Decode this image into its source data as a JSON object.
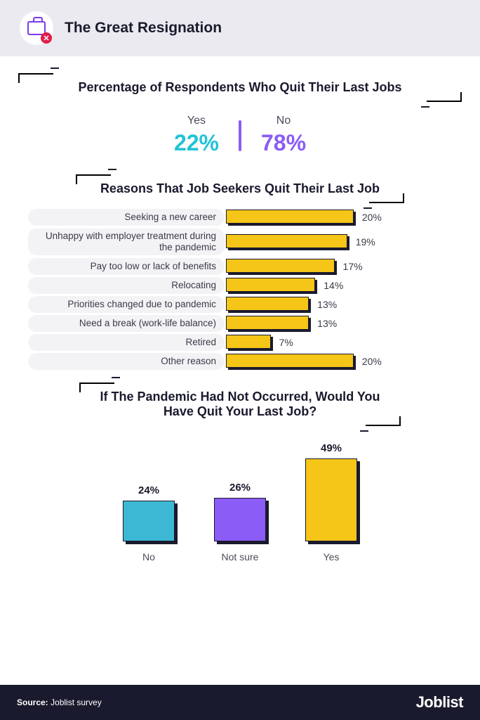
{
  "header": {
    "title": "The Great Resignation",
    "icon": "briefcase-x-icon"
  },
  "section1": {
    "title": "Percentage of Respondents Who Quit Their Last Jobs",
    "yes_label": "Yes",
    "yes_value": "22%",
    "yes_color": "#22c3d6",
    "no_label": "No",
    "no_value": "78%",
    "no_color": "#8b5cf6",
    "divider_color": "#8b5cf6"
  },
  "section2": {
    "title": "Reasons That Job Seekers Quit Their Last Job",
    "type": "bar-horizontal",
    "bar_color": "#f5c518",
    "border_color": "#1a1a2e",
    "label_bg": "#f3f3f6",
    "max_pct": 22,
    "rows": [
      {
        "label": "Seeking a new career",
        "value": 20,
        "display": "20%"
      },
      {
        "label": "Unhappy with employer treatment during the pandemic",
        "value": 19,
        "display": "19%",
        "two_line": true
      },
      {
        "label": "Pay too low or lack of benefits",
        "value": 17,
        "display": "17%"
      },
      {
        "label": "Relocating",
        "value": 14,
        "display": "14%"
      },
      {
        "label": "Priorities changed due to pandemic",
        "value": 13,
        "display": "13%"
      },
      {
        "label": "Need a break (work-life balance)",
        "value": 13,
        "display": "13%"
      },
      {
        "label": "Retired",
        "value": 7,
        "display": "7%"
      },
      {
        "label": "Other reason",
        "value": 20,
        "display": "20%"
      }
    ]
  },
  "section3": {
    "title": "If The Pandemic Had Not Occurred, Would You Have Quit Your Last Job?",
    "type": "bar-vertical",
    "border_color": "#1a1a2e",
    "max_pct": 50,
    "bars": [
      {
        "label": "No",
        "value": 24,
        "display": "24%",
        "color": "#3db8d4"
      },
      {
        "label": "Not sure",
        "value": 26,
        "display": "26%",
        "color": "#8b5cf6"
      },
      {
        "label": "Yes",
        "value": 49,
        "display": "49%",
        "color": "#f5c518"
      }
    ]
  },
  "footer": {
    "source_label": "Source:",
    "source_value": "Joblist survey",
    "logo": "Joblist"
  },
  "colors": {
    "bg": "#ffffff",
    "header_bg": "#eaeaf0",
    "text": "#1a1a2e",
    "footer_bg": "#1a1a2e"
  }
}
